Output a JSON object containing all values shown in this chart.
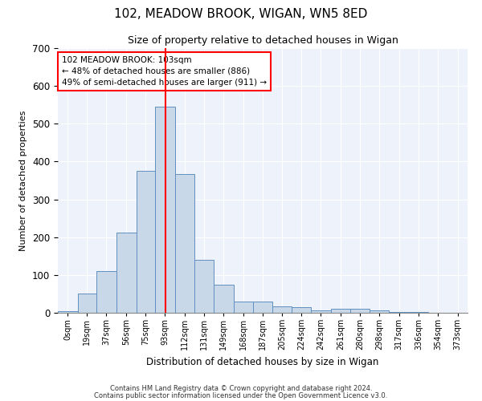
{
  "title1": "102, MEADOW BROOK, WIGAN, WN5 8ED",
  "title2": "Size of property relative to detached houses in Wigan",
  "xlabel": "Distribution of detached houses by size in Wigan",
  "ylabel": "Number of detached properties",
  "annotation_line1": "102 MEADOW BROOK: 103sqm",
  "annotation_line2": "← 48% of detached houses are smaller (886)",
  "annotation_line3": "49% of semi-detached houses are larger (911) →",
  "property_size": 103,
  "bin_labels": [
    "0sqm",
    "19sqm",
    "37sqm",
    "56sqm",
    "75sqm",
    "93sqm",
    "112sqm",
    "131sqm",
    "149sqm",
    "168sqm",
    "187sqm",
    "205sqm",
    "224sqm",
    "242sqm",
    "261sqm",
    "280sqm",
    "298sqm",
    "317sqm",
    "336sqm",
    "354sqm",
    "373sqm"
  ],
  "bin_edges": [
    0,
    19,
    37,
    56,
    75,
    93,
    112,
    131,
    149,
    168,
    187,
    205,
    224,
    242,
    261,
    280,
    298,
    317,
    336,
    354,
    373,
    392
  ],
  "bar_heights": [
    5,
    50,
    110,
    212,
    375,
    545,
    368,
    140,
    75,
    30,
    30,
    17,
    14,
    7,
    10,
    10,
    7,
    2,
    2,
    1,
    1
  ],
  "bar_color": "#c8d8e8",
  "bar_edgecolor": "#6090c0",
  "redline_x": 103,
  "ylim": [
    0,
    700
  ],
  "yticks": [
    0,
    100,
    200,
    300,
    400,
    500,
    600,
    700
  ],
  "background_color": "#eef2fa",
  "grid_color": "#ffffff",
  "fig_background": "#ffffff",
  "footer1": "Contains HM Land Registry data © Crown copyright and database right 2024.",
  "footer2": "Contains public sector information licensed under the Open Government Licence v3.0."
}
